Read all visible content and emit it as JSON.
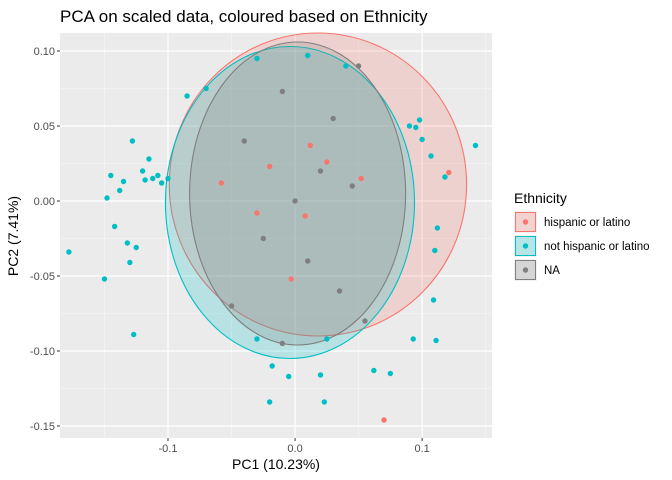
{
  "chart_data": {
    "type": "scatter",
    "title": "PCA on scaled data, coloured based on Ethnicity",
    "xlabel": "PC1 (10.23%)",
    "ylabel": "PC2 (7.41%)",
    "xlim": [
      -0.185,
      0.155
    ],
    "ylim": [
      -0.158,
      0.112
    ],
    "x_ticks": [
      -0.1,
      0.0,
      0.1
    ],
    "x_tick_labels": [
      "-0.1",
      "0.0",
      "0.1"
    ],
    "y_ticks": [
      -0.15,
      -0.1,
      -0.05,
      0.0,
      0.05,
      0.1
    ],
    "y_tick_labels": [
      "-0.15",
      "-0.10",
      "-0.05",
      "0.00",
      "0.05",
      "0.10"
    ],
    "grid": true,
    "background": "#ebebeb",
    "legend": {
      "title": "Ethnicity",
      "position": "right",
      "entries": [
        {
          "label": "hispanic or latino",
          "color": "#F8766D"
        },
        {
          "label": "not hispanic or latino",
          "color": "#00BFC4"
        },
        {
          "label": "NA",
          "color": "#7F7F7F"
        }
      ]
    },
    "series": [
      {
        "name": "hispanic or latino",
        "color": "#F8766D",
        "ellipse": {
          "cx": 0.018,
          "cy": 0.011,
          "rx": 0.117,
          "ry": 0.101
        },
        "points": [
          [
            0.121,
            0.019
          ],
          [
            0.07,
            -0.146
          ],
          [
            -0.058,
            0.012
          ],
          [
            -0.02,
            0.023
          ],
          [
            0.012,
            0.037
          ],
          [
            0.025,
            0.026
          ],
          [
            -0.03,
            -0.008
          ],
          [
            0.052,
            0.015
          ],
          [
            -0.003,
            -0.052
          ],
          [
            0.008,
            -0.01
          ]
        ]
      },
      {
        "name": "not hispanic or latino",
        "color": "#00BFC4",
        "ellipse": {
          "cx": -0.004,
          "cy": -0.001,
          "rx": 0.098,
          "ry": 0.104
        },
        "points": [
          [
            -0.178,
            -0.034
          ],
          [
            -0.15,
            -0.052
          ],
          [
            -0.148,
            0.002
          ],
          [
            -0.145,
            0.017
          ],
          [
            -0.142,
            -0.017
          ],
          [
            -0.138,
            0.007
          ],
          [
            -0.135,
            0.013
          ],
          [
            -0.132,
            -0.028
          ],
          [
            -0.13,
            -0.041
          ],
          [
            -0.128,
            0.04
          ],
          [
            -0.127,
            -0.089
          ],
          [
            -0.125,
            -0.031
          ],
          [
            -0.12,
            0.02
          ],
          [
            -0.118,
            0.014
          ],
          [
            -0.115,
            0.028
          ],
          [
            -0.112,
            0.015
          ],
          [
            -0.108,
            0.017
          ],
          [
            -0.105,
            0.012
          ],
          [
            -0.1,
            0.015
          ],
          [
            0.142,
            0.037
          ],
          [
            0.118,
            0.016
          ],
          [
            0.112,
            -0.018
          ],
          [
            0.11,
            -0.033
          ],
          [
            0.109,
            -0.066
          ],
          [
            0.111,
            -0.093
          ],
          [
            0.107,
            0.03
          ],
          [
            0.1,
            0.041
          ],
          [
            0.098,
            0.054
          ],
          [
            0.095,
            0.049
          ],
          [
            0.09,
            0.05
          ],
          [
            0.093,
            -0.092
          ],
          [
            0.075,
            -0.115
          ],
          [
            0.062,
            -0.113
          ],
          [
            -0.02,
            -0.134
          ],
          [
            0.023,
            -0.134
          ],
          [
            -0.005,
            -0.117
          ],
          [
            0.02,
            -0.116
          ],
          [
            -0.018,
            -0.11
          ],
          [
            -0.03,
            -0.092
          ],
          [
            0.025,
            -0.092
          ],
          [
            -0.085,
            0.07
          ],
          [
            -0.07,
            0.075
          ],
          [
            -0.03,
            0.095
          ],
          [
            0.01,
            0.097
          ],
          [
            0.04,
            0.09
          ]
        ]
      },
      {
        "name": "NA",
        "color": "#7F7F7F",
        "ellipse": {
          "cx": 0.002,
          "cy": 0.005,
          "rx": 0.085,
          "ry": 0.101
        },
        "points": [
          [
            0.05,
            0.09
          ],
          [
            -0.01,
            0.073
          ],
          [
            0.03,
            0.055
          ],
          [
            -0.04,
            0.04
          ],
          [
            0.045,
            0.01
          ],
          [
            -0.025,
            -0.025
          ],
          [
            0.01,
            -0.04
          ],
          [
            0.035,
            -0.06
          ],
          [
            -0.05,
            -0.07
          ],
          [
            0.055,
            -0.08
          ],
          [
            0.0,
            0.0
          ],
          [
            0.02,
            0.02
          ],
          [
            -0.01,
            -0.095
          ]
        ]
      }
    ]
  }
}
